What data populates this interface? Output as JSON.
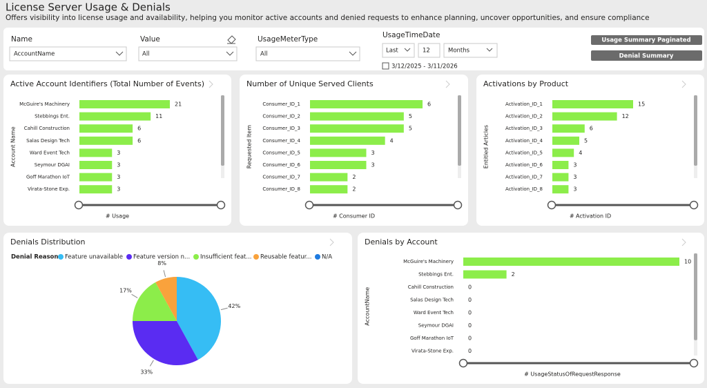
{
  "header": {
    "title": "License Server Usage & Denials",
    "subtitle": "Offers visibility into license usage and availability, helping you monitor active accounts and denied requests to enhance planning, uncover opportunities, and ensure compliance"
  },
  "filters": {
    "name": {
      "label": "Name",
      "value": "AccountName"
    },
    "value": {
      "label": "Value",
      "value": "All"
    },
    "usage_meter_type": {
      "label": "UsageMeterType",
      "value": "All"
    },
    "usage_time_date": {
      "label": "UsageTimeDate",
      "mode": "Last",
      "count": "12",
      "unit": "Months",
      "range": "3/12/2025 - 3/11/2026"
    }
  },
  "buttons": [
    "Usage Summary Paginated",
    "Denial Summary"
  ],
  "chart_data": [
    {
      "type": "bar",
      "title": "Active Account Identifiers (Total Number of Events)",
      "y_label": "Account Name",
      "x_label": "# Usage",
      "log_scale": true,
      "color": "#8ced4a",
      "categories": [
        "McGuire's Machinery",
        "Stebbings Ent.",
        "Cahill Construction",
        "Salas Design Tech",
        "Ward Event Tech",
        "Seymour DGAI",
        "Goff Marathon IoT",
        "Virata-Stone Exp."
      ],
      "values": [
        21,
        11,
        6,
        6,
        3,
        3,
        3,
        3
      ]
    },
    {
      "type": "bar",
      "title": "Number of Unique Served Clients",
      "y_label": "Requested Item",
      "x_label": "# Consumer ID",
      "color": "#8ced4a",
      "categories": [
        "Consumer_ID_1",
        "Consumer_ID_2",
        "Consumer_ID_3",
        "Consumer_ID_4",
        "Consumer_ID_5",
        "Consumer_ID_6",
        "Consumer_ID_7",
        "Consumer_ID_8"
      ],
      "values": [
        6,
        5,
        5,
        4,
        3,
        3,
        2,
        2
      ]
    },
    {
      "type": "bar",
      "title": "Activations by Product",
      "y_label": "Entitled Articles",
      "x_label": "# Activation ID",
      "color": "#8ced4a",
      "categories": [
        "Activation_ID_1",
        "Activation_ID_2",
        "Activation_ID_3",
        "Activation_ID_4",
        "Activation_ID_5",
        "Activation_ID_6",
        "Activation_ID_7",
        "Activation_ID_8"
      ],
      "values": [
        15,
        12,
        6,
        5,
        4,
        3,
        3,
        3
      ]
    },
    {
      "type": "pie",
      "title": "Denials Distribution",
      "legend_title": "Denial Reason",
      "categories": [
        "Feature unavailable",
        "Feature version n...",
        "Insufficient feat...",
        "Reusable featur...",
        "N/A"
      ],
      "values": [
        42,
        33,
        17,
        8,
        0
      ],
      "value_labels": [
        "42%",
        "33%",
        "17%",
        "8%",
        null
      ],
      "colors": [
        "#36bdf4",
        "#5a2cf2",
        "#8ced4a",
        "#f9a23c",
        "#1f7be0"
      ]
    },
    {
      "type": "bar",
      "title": "Denials by Account",
      "y_label": "AccountName",
      "x_label": "# UsageStatusOfRequestResponse",
      "color": "#8ced4a",
      "categories": [
        "McGuire's Machinery",
        "Stebbings Ent.",
        "Cahill Construction",
        "Salas Design Tech",
        "Ward Event Tech",
        "Seymour DGAI",
        "Goff Marathon IoT",
        "Virata-Stone Exp."
      ],
      "values": [
        10,
        2,
        0,
        0,
        0,
        0,
        0,
        0
      ]
    }
  ]
}
